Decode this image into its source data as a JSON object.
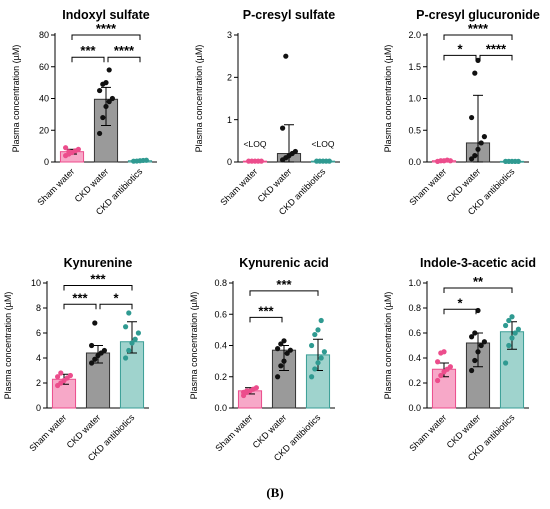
{
  "figure": {
    "caption": "(B)"
  },
  "colors": {
    "sham": "#ec4d8c",
    "ckd_water": "#7f7f7f",
    "ckd_antibiotics": "#3a9e96",
    "ink": "#000000"
  },
  "chart_data": [
    {
      "type": "bar",
      "title": "Indoxyl sulfate",
      "ylabel": "Plasma concentration (µM)",
      "categories": [
        "Sham water",
        "CKD water",
        "CKD antibiotics"
      ],
      "ylim": [
        0,
        80
      ],
      "yticks": [
        0,
        20,
        40,
        60,
        80
      ],
      "ytick_labels": [
        "0",
        "20",
        "40",
        "60",
        "80"
      ],
      "values": [
        6.5,
        39.5,
        0.8
      ],
      "error": [
        [
          5,
          8
        ],
        [
          23,
          47
        ],
        [
          0.5,
          1.2
        ]
      ],
      "points": [
        [
          4,
          5,
          6,
          7,
          8,
          9,
          6.5
        ],
        [
          18,
          28,
          35,
          38,
          40,
          45,
          49,
          50,
          58
        ],
        [
          0.5,
          0.6,
          0.8,
          1,
          1.1
        ]
      ],
      "annotations": [],
      "significance": [
        {
          "from": 0,
          "to": 1,
          "label": "***",
          "y": 66
        },
        {
          "from": 1,
          "to": 2,
          "label": "****",
          "y": 66
        },
        {
          "from": 0,
          "to": 2,
          "label": "****",
          "y": 80
        }
      ]
    },
    {
      "type": "bar",
      "title": "P-cresyl sulfate",
      "ylabel": "Plasma concentration (µM)",
      "categories": [
        "Sham water",
        "CKD water",
        "CKD antibiotics"
      ],
      "ylim": [
        0,
        3
      ],
      "yticks": [
        0,
        1,
        2,
        3
      ],
      "ytick_labels": [
        "0",
        "1",
        "2",
        "3"
      ],
      "values": [
        0.02,
        0.2,
        0.02
      ],
      "error": [
        [
          0.01,
          0.03
        ],
        [
          0,
          0.88
        ],
        [
          0.01,
          0.03
        ]
      ],
      "points": [
        [
          0.02,
          0.02,
          0.02,
          0.02,
          0.02
        ],
        [
          0.05,
          0.1,
          0.15,
          0.2,
          0.25,
          0.8,
          2.5
        ],
        [
          0.02,
          0.02,
          0.02,
          0.02,
          0.02
        ]
      ],
      "annotations": [
        {
          "cat": 0,
          "text": "<LOQ"
        },
        {
          "cat": 2,
          "text": "<LOQ"
        }
      ],
      "significance": []
    },
    {
      "type": "bar",
      "title": "P-cresyl glucuronide",
      "ylabel": "Plasma concentration (µM)",
      "categories": [
        "Sham water",
        "CKD water",
        "CKD antibiotics"
      ],
      "ylim": [
        0,
        2
      ],
      "yticks": [
        0,
        0.5,
        1,
        1.5,
        2
      ],
      "ytick_labels": [
        "0.0",
        "0.5",
        "1.0",
        "1.5",
        "2.0"
      ],
      "values": [
        0.02,
        0.3,
        0.01
      ],
      "error": [
        [
          0.01,
          0.03
        ],
        [
          0,
          1.05
        ],
        [
          0,
          0.02
        ]
      ],
      "points": [
        [
          0.01,
          0.02,
          0.02,
          0.03,
          0.02
        ],
        [
          0.05,
          0.1,
          0.2,
          0.3,
          0.4,
          0.7,
          1.4,
          1.6
        ],
        [
          0.01,
          0.01,
          0.01,
          0.01,
          0.01
        ]
      ],
      "annotations": [],
      "significance": [
        {
          "from": 0,
          "to": 1,
          "label": "*",
          "y": 1.68
        },
        {
          "from": 1,
          "to": 2,
          "label": "****",
          "y": 1.68
        },
        {
          "from": 0,
          "to": 2,
          "label": "****",
          "y": 2.0
        }
      ]
    },
    {
      "type": "bar",
      "title": "Kynurenine",
      "ylabel": "Plasma concentration (µM)",
      "categories": [
        "Sham water",
        "CKD water",
        "CKD antibiotics"
      ],
      "ylim": [
        0,
        10
      ],
      "yticks": [
        0,
        2,
        4,
        6,
        8,
        10
      ],
      "ytick_labels": [
        "0",
        "2",
        "4",
        "6",
        "8",
        "10"
      ],
      "values": [
        2.3,
        4.4,
        5.3
      ],
      "error": [
        [
          1.9,
          2.7
        ],
        [
          3.6,
          5.0
        ],
        [
          4.4,
          6.9
        ]
      ],
      "points": [
        [
          1.8,
          2.0,
          2.2,
          2.4,
          2.6,
          2.5,
          2.8
        ],
        [
          3.6,
          3.9,
          4.2,
          4.4,
          4.6,
          5.0,
          6.8
        ],
        [
          4.0,
          4.6,
          5.2,
          5.5,
          6.0,
          6.5,
          7.6
        ]
      ],
      "annotations": [],
      "significance": [
        {
          "from": 0,
          "to": 1,
          "label": "***",
          "y": 8.3
        },
        {
          "from": 1,
          "to": 2,
          "label": "*",
          "y": 8.3
        },
        {
          "from": 0,
          "to": 2,
          "label": "***",
          "y": 9.8
        }
      ]
    },
    {
      "type": "bar",
      "title": "Kynurenic acid",
      "ylabel": "Plasma concentration (µM)",
      "categories": [
        "Sham water",
        "CKD water",
        "CKD antibiotics"
      ],
      "ylim": [
        0,
        0.8
      ],
      "yticks": [
        0,
        0.2,
        0.4,
        0.6,
        0.8
      ],
      "ytick_labels": [
        "0.0",
        "0.2",
        "0.4",
        "0.6",
        "0.8"
      ],
      "values": [
        0.11,
        0.37,
        0.34
      ],
      "error": [
        [
          0.09,
          0.13
        ],
        [
          0.24,
          0.4
        ],
        [
          0.24,
          0.44
        ]
      ],
      "points": [
        [
          0.08,
          0.1,
          0.11,
          0.12,
          0.13,
          0.1,
          0.11
        ],
        [
          0.2,
          0.27,
          0.3,
          0.35,
          0.37,
          0.38,
          0.41,
          0.43
        ],
        [
          0.2,
          0.25,
          0.29,
          0.32,
          0.36,
          0.4,
          0.47,
          0.5,
          0.56
        ]
      ],
      "annotations": [],
      "significance": [
        {
          "from": 0,
          "to": 1,
          "label": "***",
          "y": 0.58
        },
        {
          "from": 0,
          "to": 2,
          "label": "***",
          "y": 0.75
        }
      ]
    },
    {
      "type": "bar",
      "title": "Indole-3-acetic acid",
      "ylabel": "Plasma concentration (µM)",
      "categories": [
        "Sham water",
        "CKD water",
        "CKD antibiotics"
      ],
      "ylim": [
        0,
        1
      ],
      "yticks": [
        0,
        0.2,
        0.4,
        0.6,
        0.8,
        1
      ],
      "ytick_labels": [
        "0.0",
        "0.2",
        "0.4",
        "0.6",
        "0.8",
        "1.0"
      ],
      "values": [
        0.31,
        0.52,
        0.61
      ],
      "error": [
        [
          0.25,
          0.36
        ],
        [
          0.33,
          0.6
        ],
        [
          0.47,
          0.69
        ]
      ],
      "points": [
        [
          0.22,
          0.26,
          0.29,
          0.31,
          0.33,
          0.37,
          0.44,
          0.45
        ],
        [
          0.3,
          0.38,
          0.45,
          0.5,
          0.53,
          0.57,
          0.6,
          0.78
        ],
        [
          0.36,
          0.5,
          0.56,
          0.6,
          0.63,
          0.66,
          0.7,
          0.73
        ]
      ],
      "annotations": [],
      "significance": [
        {
          "from": 0,
          "to": 1,
          "label": "*",
          "y": 0.79
        },
        {
          "from": 0,
          "to": 2,
          "label": "**",
          "y": 0.96
        }
      ]
    }
  ]
}
